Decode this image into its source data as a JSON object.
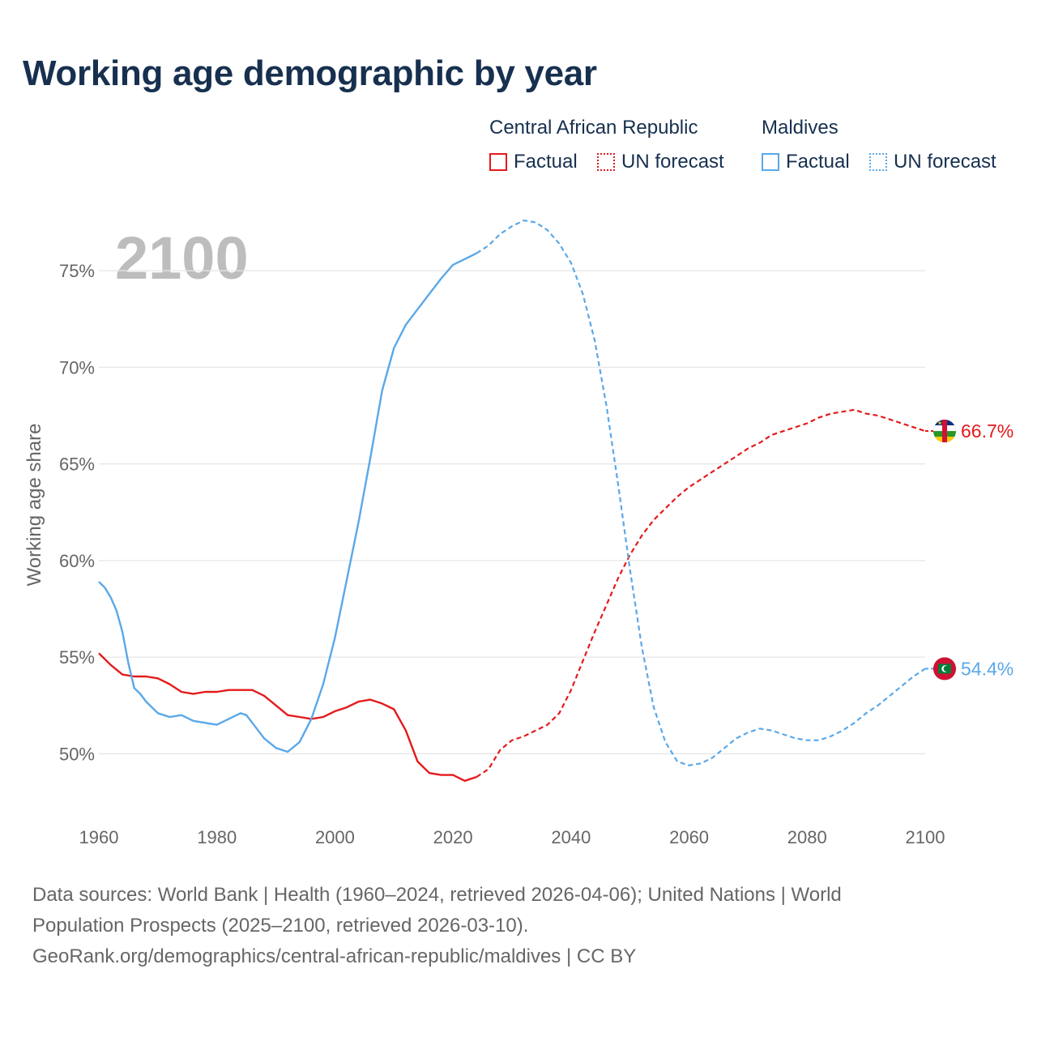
{
  "title": "Working age demographic by year",
  "year_watermark": "2100",
  "legend": {
    "groups": [
      {
        "name": "Central African Republic",
        "factual_label": "Factual",
        "forecast_label": "UN forecast",
        "color": "#e41a1c"
      },
      {
        "name": "Maldives",
        "factual_label": "Factual",
        "forecast_label": "UN forecast",
        "color": "#5aa8e8"
      }
    ]
  },
  "chart_data": {
    "type": "line",
    "title": "Working age demographic by year",
    "xlabel": "",
    "ylabel": "Working age share",
    "xlim": [
      1960,
      2100
    ],
    "ylim": [
      46.2,
      78.4
    ],
    "x_ticks": [
      1960,
      1980,
      2000,
      2020,
      2040,
      2060,
      2080,
      2100
    ],
    "x_tick_labels": [
      "1960",
      "1980",
      "2000",
      "2020",
      "2040",
      "2060",
      "2080",
      "2100"
    ],
    "y_ticks": [
      50,
      55,
      60,
      65,
      70,
      75
    ],
    "y_tick_labels": [
      "50%",
      "55%",
      "60%",
      "65%",
      "70%",
      "75%"
    ],
    "grid": true,
    "factual_end_year": 2024,
    "series": [
      {
        "name": "Central African Republic",
        "color": "#e41a1c",
        "end_label": "66.7%",
        "flag": "Central African Republic",
        "points": [
          [
            1960,
            55.2
          ],
          [
            1962,
            54.6
          ],
          [
            1964,
            54.1
          ],
          [
            1966,
            54.0
          ],
          [
            1968,
            54.0
          ],
          [
            1970,
            53.9
          ],
          [
            1972,
            53.6
          ],
          [
            1974,
            53.2
          ],
          [
            1976,
            53.1
          ],
          [
            1978,
            53.2
          ],
          [
            1980,
            53.2
          ],
          [
            1982,
            53.3
          ],
          [
            1984,
            53.3
          ],
          [
            1986,
            53.3
          ],
          [
            1988,
            53.0
          ],
          [
            1990,
            52.5
          ],
          [
            1992,
            52.0
          ],
          [
            1994,
            51.9
          ],
          [
            1996,
            51.8
          ],
          [
            1998,
            51.9
          ],
          [
            2000,
            52.2
          ],
          [
            2002,
            52.4
          ],
          [
            2004,
            52.7
          ],
          [
            2006,
            52.8
          ],
          [
            2008,
            52.6
          ],
          [
            2010,
            52.3
          ],
          [
            2012,
            51.2
          ],
          [
            2014,
            49.6
          ],
          [
            2016,
            49.0
          ],
          [
            2018,
            48.9
          ],
          [
            2020,
            48.9
          ],
          [
            2022,
            48.6
          ],
          [
            2024,
            48.8
          ],
          [
            2026,
            49.2
          ],
          [
            2028,
            50.2
          ],
          [
            2030,
            50.7
          ],
          [
            2032,
            50.9
          ],
          [
            2034,
            51.2
          ],
          [
            2036,
            51.5
          ],
          [
            2038,
            52.1
          ],
          [
            2040,
            53.3
          ],
          [
            2042,
            54.8
          ],
          [
            2044,
            56.3
          ],
          [
            2046,
            57.7
          ],
          [
            2048,
            59.1
          ],
          [
            2050,
            60.3
          ],
          [
            2052,
            61.3
          ],
          [
            2054,
            62.1
          ],
          [
            2056,
            62.7
          ],
          [
            2058,
            63.3
          ],
          [
            2060,
            63.8
          ],
          [
            2062,
            64.2
          ],
          [
            2064,
            64.6
          ],
          [
            2066,
            65.0
          ],
          [
            2068,
            65.4
          ],
          [
            2070,
            65.8
          ],
          [
            2072,
            66.1
          ],
          [
            2074,
            66.5
          ],
          [
            2076,
            66.7
          ],
          [
            2078,
            66.9
          ],
          [
            2080,
            67.1
          ],
          [
            2082,
            67.4
          ],
          [
            2084,
            67.6
          ],
          [
            2086,
            67.7
          ],
          [
            2088,
            67.8
          ],
          [
            2090,
            67.6
          ],
          [
            2092,
            67.5
          ],
          [
            2094,
            67.3
          ],
          [
            2096,
            67.1
          ],
          [
            2098,
            66.9
          ],
          [
            2100,
            66.7
          ]
        ]
      },
      {
        "name": "Maldives",
        "color": "#5aa8e8",
        "end_label": "54.4%",
        "flag": "Maldives",
        "points": [
          [
            1960,
            58.9
          ],
          [
            1961,
            58.6
          ],
          [
            1962,
            58.1
          ],
          [
            1963,
            57.4
          ],
          [
            1964,
            56.3
          ],
          [
            1965,
            54.7
          ],
          [
            1966,
            53.4
          ],
          [
            1967,
            53.1
          ],
          [
            1968,
            52.7
          ],
          [
            1970,
            52.1
          ],
          [
            1972,
            51.9
          ],
          [
            1974,
            52.0
          ],
          [
            1976,
            51.7
          ],
          [
            1978,
            51.6
          ],
          [
            1980,
            51.5
          ],
          [
            1982,
            51.8
          ],
          [
            1984,
            52.1
          ],
          [
            1985,
            52.0
          ],
          [
            1986,
            51.6
          ],
          [
            1988,
            50.8
          ],
          [
            1990,
            50.3
          ],
          [
            1992,
            50.1
          ],
          [
            1994,
            50.6
          ],
          [
            1996,
            51.8
          ],
          [
            1998,
            53.6
          ],
          [
            2000,
            56.0
          ],
          [
            2002,
            59.0
          ],
          [
            2004,
            62.0
          ],
          [
            2006,
            65.3
          ],
          [
            2008,
            68.8
          ],
          [
            2010,
            71.0
          ],
          [
            2012,
            72.2
          ],
          [
            2014,
            73.0
          ],
          [
            2016,
            73.8
          ],
          [
            2018,
            74.6
          ],
          [
            2020,
            75.3
          ],
          [
            2022,
            75.6
          ],
          [
            2024,
            75.9
          ],
          [
            2026,
            76.3
          ],
          [
            2028,
            76.9
          ],
          [
            2030,
            77.3
          ],
          [
            2032,
            77.6
          ],
          [
            2034,
            77.5
          ],
          [
            2036,
            77.1
          ],
          [
            2038,
            76.4
          ],
          [
            2040,
            75.4
          ],
          [
            2042,
            73.8
          ],
          [
            2044,
            71.4
          ],
          [
            2046,
            68.0
          ],
          [
            2048,
            63.9
          ],
          [
            2050,
            59.5
          ],
          [
            2052,
            55.5
          ],
          [
            2054,
            52.4
          ],
          [
            2056,
            50.6
          ],
          [
            2058,
            49.6
          ],
          [
            2060,
            49.4
          ],
          [
            2062,
            49.5
          ],
          [
            2064,
            49.8
          ],
          [
            2066,
            50.3
          ],
          [
            2068,
            50.8
          ],
          [
            2070,
            51.1
          ],
          [
            2072,
            51.3
          ],
          [
            2074,
            51.2
          ],
          [
            2076,
            51.0
          ],
          [
            2078,
            50.8
          ],
          [
            2080,
            50.7
          ],
          [
            2082,
            50.7
          ],
          [
            2084,
            50.9
          ],
          [
            2086,
            51.2
          ],
          [
            2088,
            51.6
          ],
          [
            2090,
            52.1
          ],
          [
            2092,
            52.5
          ],
          [
            2094,
            53.0
          ],
          [
            2096,
            53.5
          ],
          [
            2098,
            54.0
          ],
          [
            2100,
            54.4
          ]
        ]
      }
    ]
  },
  "footer": {
    "line1": "Data sources: World Bank | Health (1960–2024, retrieved 2026-04-06); United Nations | World",
    "line2": "Population Prospects (2025–2100, retrieved 2026-03-10).",
    "line3": "GeoRank.org/demographics/central-african-republic/maldives | CC BY"
  }
}
